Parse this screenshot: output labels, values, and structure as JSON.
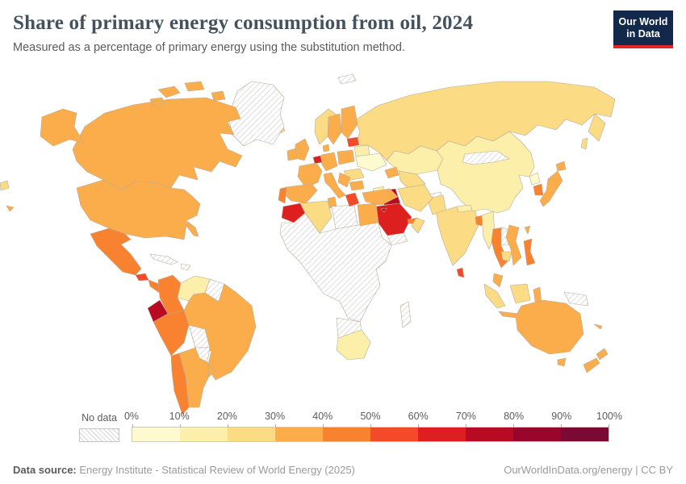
{
  "header": {
    "title": "Share of primary energy consumption from oil, 2024",
    "subtitle": "Measured as a percentage of primary energy using the substitution method."
  },
  "logo": {
    "line1": "Our World",
    "line2": "in Data",
    "bg": "#12294b",
    "accent": "#e0252b"
  },
  "legend": {
    "no_data_label": "No data",
    "tick_labels": [
      "0%",
      "10%",
      "20%",
      "30%",
      "40%",
      "50%",
      "60%",
      "70%",
      "80%",
      "90%",
      "100%"
    ],
    "bin_colors": [
      "#FEFAD0",
      "#FCEFA9",
      "#FBDB84",
      "#FBAD4B",
      "#F8822F",
      "#F44A2A",
      "#DE1F1F",
      "#B90A23",
      "#99062C",
      "#7A0A33"
    ]
  },
  "footer": {
    "source_label": "Data source:",
    "source_text": " Energy Institute - Statistical Review of World Energy (2025)",
    "right_text": "OurWorldInData.org/energy | CC BY"
  },
  "chart_data": {
    "type": "heatmap",
    "subtype": "choropleth-world-map",
    "title": "Share of primary energy consumption from oil, 2024",
    "unit": "%",
    "scale_bins": [
      {
        "range": "0-10%",
        "color": "#FEFAD0"
      },
      {
        "range": "10-20%",
        "color": "#FCEFA9"
      },
      {
        "range": "20-30%",
        "color": "#FBDB84"
      },
      {
        "range": "30-40%",
        "color": "#FBAD4B"
      },
      {
        "range": "40-50%",
        "color": "#F8822F"
      },
      {
        "range": "50-60%",
        "color": "#F44A2A"
      },
      {
        "range": "60-70%",
        "color": "#DE1F1F"
      },
      {
        "range": "70-80%",
        "color": "#B90A23"
      },
      {
        "range": "80-90%",
        "color": "#99062C"
      },
      {
        "range": "90-100%",
        "color": "#7A0A33"
      }
    ],
    "region_values_estimated_bin": {
      "canada": "30-40%",
      "usa": "30-40%",
      "mexico": "40-50%",
      "guatemala": "50-60%",
      "central_america": "40-50%",
      "colombia": "40-50%",
      "venezuela": "10-20%",
      "ecuador": "70-80%",
      "peru": "40-50%",
      "brazil": "30-40%",
      "chile": "40-50%",
      "argentina": "30-40%",
      "uruguay": "30-40%",
      "iceland": "20-30%",
      "norway": "20-30%",
      "sweden": "30-40%",
      "finland": "30-40%",
      "uk": "30-40%",
      "ireland": "30-40%",
      "denmark": "30-40%",
      "germany": "30-40%",
      "benelux": "60-70%",
      "france": "30-40%",
      "poland": "30-40%",
      "baltics": "50-60%",
      "belarus": "10-20%",
      "ukraine": "0-10%",
      "romania": "20-30%",
      "italy": "30-40%",
      "spain": "30-40%",
      "portugal": "40-50%",
      "balkans": "30-40%",
      "greece": "50-60%",
      "bulgaria": "30-40%",
      "russia": "20-30%",
      "kazakhstan": "10-20%",
      "central_asia": "20-30%",
      "caucasus": "30-40%",
      "turkey": "30-40%",
      "cyprus": "70-80%",
      "syria": "10-20%",
      "jordan": "30-40%",
      "iraq": "70-80%",
      "iran": "20-30%",
      "saudi_arabia": "60-70%",
      "uae": "40-50%",
      "oman": "20-30%",
      "morocco": "60-70%",
      "algeria": "20-30%",
      "tunisia": "30-40%",
      "egypt": "30-40%",
      "south_africa": "10-20%",
      "pakistan": "20-30%",
      "india": "20-30%",
      "nepal": "10-20%",
      "bangladesh": "40-50%",
      "sri_lanka": "50-60%",
      "myanmar": "10-20%",
      "thailand": "40-50%",
      "vietnam": "30-40%",
      "cambodia": "20-30%",
      "malaysia": "30-40%",
      "indonesia_west": "20-30%",
      "indonesia_east": "30-40%",
      "philippines": "40-50%",
      "china": "10-20%",
      "north_korea": "0-10%",
      "south_korea": "40-50%",
      "japan": "30-40%",
      "taiwan": "30-40%",
      "australia": "30-40%",
      "new_zealand": "30-40%",
      "new_caledonia": "30-40%",
      "hawaii": "30-40%",
      "chukotka": "20-30%",
      "greenland": "No data",
      "cuba": "No data",
      "hispaniola": "No data",
      "guyanas": "No data",
      "bolivia": "No data",
      "paraguay": "No data",
      "svalbard": "No data",
      "mongolia": "No data",
      "afghanistan": "No data",
      "yemen": "No data",
      "libya": "No data",
      "africa_nodata": "No data",
      "botswana_namibia": "No data",
      "madagascar": "No data",
      "laos": "No data",
      "papua_new_guinea": "No data"
    }
  },
  "map": {
    "no_data_fill": "no-data",
    "fills": {
      "russia": "#FBDB84",
      "kazakhstan": "#FCEFA9",
      "central_asia": "#FBDB84",
      "caucasus": "#FBAD4B",
      "china": "#FCEFA9",
      "mongolia": "no-data",
      "north_korea": "#FEFAD0",
      "south_korea": "#F8822F",
      "japan": "#FBAD4B",
      "taiwan": "#FBAD4B",
      "afghanistan": "no-data",
      "pakistan": "#FBDB84",
      "india": "#FBDB84",
      "nepal": "#FCEFA9",
      "bangladesh": "#F8822F",
      "sri_lanka": "#F44A2A",
      "myanmar": "#FCEFA9",
      "thailand": "#F8822F",
      "laos": "no-data",
      "vietnam": "#FBAD4B",
      "cambodia": "#FBDB84",
      "malaysia": "#FBAD4B",
      "indonesia_west": "#FBDB84",
      "indonesia_east": "#FBAD4B",
      "philippines": "#F8822F",
      "iran": "#FBDB84",
      "iraq": "#B90A23",
      "syria": "#FCEFA9",
      "jordan": "#FBAD4B",
      "saudi_arabia": "#DE1F1F",
      "uae": "#F8822F",
      "oman": "#FBDB84",
      "yemen": "no-data",
      "turkey": "#FBAD4B",
      "cyprus": "#B90A23",
      "morocco": "#DE1F1F",
      "algeria": "#FBDB84",
      "tunisia": "#FBAD4B",
      "libya": "no-data",
      "egypt": "#FBAD4B",
      "africa_nodata": "no-data",
      "botswana_namibia": "no-data",
      "south_africa": "#FCEFA9",
      "madagascar": "no-data",
      "iceland": "#FBDB84",
      "norway": "#FBDB84",
      "sweden": "#FBAD4B",
      "finland": "#FBAD4B",
      "uk": "#FBAD4B",
      "ireland": "#FBAD4B",
      "denmark": "#FBAD4B",
      "germany": "#FBAD4B",
      "benelux": "#DE1F1F",
      "france": "#FBAD4B",
      "poland": "#FBAD4B",
      "baltics": "#F44A2A",
      "belarus": "#FCEFA9",
      "ukraine": "#FEFAD0",
      "romania": "#FBDB84",
      "italy": "#FBAD4B",
      "spain": "#FBAD4B",
      "portugal": "#F8822F",
      "balkans": "#FBAD4B",
      "greece": "#F44A2A",
      "bulgaria": "#FBAD4B",
      "svalbard": "no-data",
      "greenland": "no-data",
      "canada": "#FBAD4B",
      "usa": "#FBAD4B",
      "mexico": "#F8822F",
      "guatemala": "#F44A2A",
      "central_america": "#F8822F",
      "cuba": "no-data",
      "hispaniola": "no-data",
      "colombia": "#F8822F",
      "venezuela": "#FCEFA9",
      "guyanas": "no-data",
      "ecuador": "#B90A23",
      "peru": "#F8822F",
      "brazil": "#FBAD4B",
      "bolivia": "no-data",
      "paraguay": "no-data",
      "chile": "#F8822F",
      "argentina": "#FBAD4B",
      "uruguay": "#FBAD4B",
      "hawaii": "#FBAD4B",
      "chukotka": "#FBDB84",
      "papua_new_guinea": "no-data",
      "australia": "#FBAD4B",
      "new_zealand": "#FBAD4B",
      "new_caledonia": "#FBAD4B"
    }
  }
}
